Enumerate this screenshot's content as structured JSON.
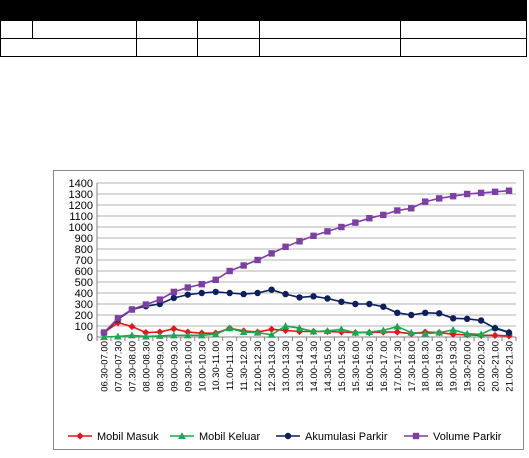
{
  "chart_data": {
    "type": "line",
    "title": "",
    "xlabel": "",
    "ylabel": "",
    "ylim": [
      0,
      1400
    ],
    "yticks": [
      0,
      100,
      200,
      300,
      400,
      500,
      600,
      700,
      800,
      900,
      1000,
      1100,
      1200,
      1300,
      1400
    ],
    "grid": true,
    "legend": "bottom",
    "categories": [
      "06.30-07.00",
      "07.00-07.30",
      "07.30-08.00",
      "08.00-08.30",
      "08.30-09.00",
      "09.00-09.30",
      "09.30-10.00",
      "10.00-10.30",
      "10.30-11.00",
      "11.00-11.30",
      "11.30-12.00",
      "12.00-12.30",
      "12.30-13.00",
      "13.00-13.30",
      "13.30-14.00",
      "14.00-14.30",
      "14.30-15.00",
      "15.00-15.30",
      "15.30-16.00",
      "16.00-16.30",
      "16.30-17.00",
      "17.00-17.30",
      "17.30-18.00",
      "18.00-18.30",
      "18.30-19.00",
      "19.00-19.30",
      "19.30-20.00",
      "20.00-20.30",
      "20.30-21.00",
      "21.00-21.30"
    ],
    "series": [
      {
        "name": "Mobil Masuk",
        "color": "#e8141b",
        "marker": "diamond",
        "values": [
          40,
          130,
          95,
          40,
          45,
          75,
          45,
          35,
          35,
          80,
          55,
          45,
          70,
          60,
          50,
          50,
          50,
          45,
          40,
          40,
          45,
          45,
          30,
          45,
          40,
          25,
          20,
          15,
          15,
          10
        ]
      },
      {
        "name": "Mobil Keluar",
        "color": "#1aa84f",
        "marker": "triangle",
        "values": [
          0,
          5,
          15,
          5,
          10,
          15,
          15,
          15,
          25,
          80,
          45,
          40,
          20,
          100,
          80,
          50,
          55,
          70,
          40,
          45,
          60,
          95,
          40,
          30,
          40,
          65,
          30,
          25,
          85,
          45
        ]
      },
      {
        "name": "Akumulasi Parkir",
        "color": "#0d1f5c",
        "marker": "circle",
        "values": [
          40,
          160,
          250,
          280,
          300,
          355,
          385,
          400,
          410,
          400,
          390,
          400,
          430,
          390,
          360,
          370,
          350,
          320,
          300,
          300,
          275,
          220,
          200,
          220,
          215,
          170,
          165,
          150,
          80,
          40
        ]
      },
      {
        "name": "Volume Parkir",
        "color": "#7d3fa4",
        "marker": "square",
        "values": [
          40,
          170,
          250,
          295,
          340,
          410,
          450,
          480,
          520,
          600,
          650,
          700,
          760,
          820,
          870,
          920,
          960,
          1000,
          1040,
          1080,
          1110,
          1150,
          1170,
          1230,
          1260,
          1280,
          1300,
          1310,
          1320,
          1330
        ]
      }
    ]
  }
}
